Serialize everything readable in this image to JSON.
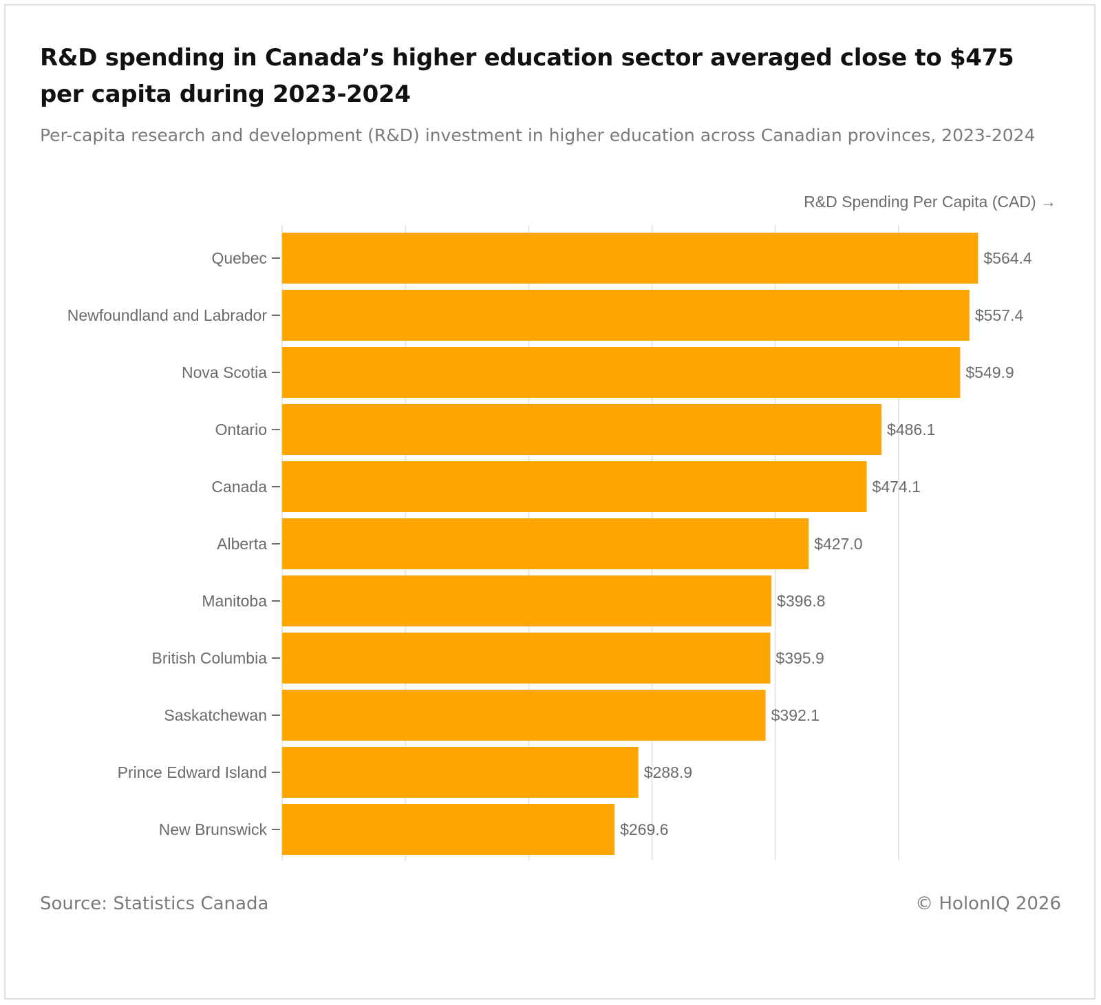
{
  "header": {
    "title": "R&D spending in Canada’s higher education sector averaged close to $475 per capita during 2023-2024",
    "subtitle": "Per-capita research and development (R&D) investment in higher education across Canadian provinces, 2023-2024"
  },
  "footer": {
    "source": "Source: Statistics Canada",
    "credit": "© HolonIQ 2026"
  },
  "colors": {
    "bar": "#FFA500",
    "grid": "#e6e6e6",
    "axis_text": "#6b6b6b"
  },
  "chart_data": {
    "type": "bar",
    "orientation": "horizontal",
    "title": "R&D spending in Canada’s higher education sector averaged close to $475 per capita during 2023-2024",
    "xlabel": "R&D Spending Per Capita (CAD) →",
    "ylabel": "",
    "categories": [
      "Quebec",
      "Newfoundland and Labrador",
      "Nova Scotia",
      "Ontario",
      "Canada",
      "Alberta",
      "Manitoba",
      "British Columbia",
      "Saskatchewan",
      "Prince Edward Island",
      "New Brunswick"
    ],
    "values": [
      564.4,
      557.4,
      549.9,
      486.1,
      474.1,
      427.0,
      396.8,
      395.9,
      392.1,
      288.9,
      269.6
    ],
    "value_labels": [
      "$564.4",
      "$557.4",
      "$549.9",
      "$486.1",
      "$474.1",
      "$427.0",
      "$396.8",
      "$395.9",
      "$392.1",
      "$288.9",
      "$269.6"
    ],
    "xlim": [
      0,
      620
    ],
    "grid_ticks": [
      0,
      100,
      200,
      300,
      400,
      500
    ],
    "grid": true,
    "legend": "none"
  }
}
